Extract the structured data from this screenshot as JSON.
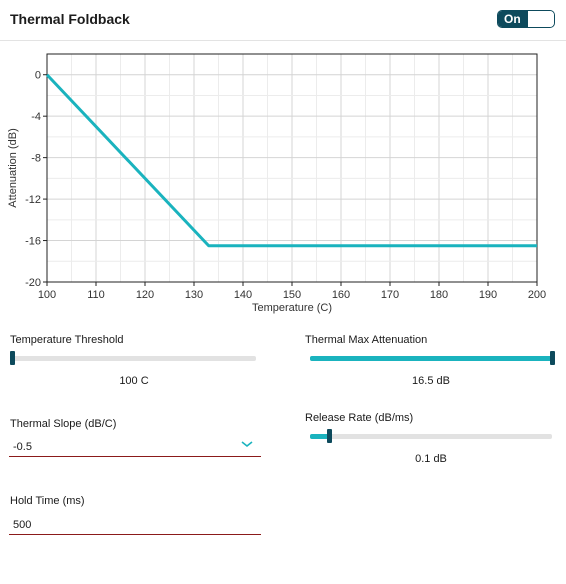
{
  "header": {
    "title": "Thermal Foldback",
    "toggle_label": "On"
  },
  "chart_data": {
    "type": "line",
    "xlabel": "Temperature (C)",
    "ylabel": "Attenuation (dB)",
    "xlim": [
      100,
      200
    ],
    "ylim": [
      -20,
      2
    ],
    "x_ticks": [
      100,
      110,
      120,
      130,
      140,
      150,
      160,
      170,
      180,
      190,
      200
    ],
    "y_ticks": [
      0,
      -4,
      -8,
      -12,
      -16,
      -20
    ],
    "grid": true,
    "series": [
      {
        "x": [
          100,
          133,
          200
        ],
        "y": [
          0,
          -16.5,
          -16.5
        ],
        "color": "#1ab3be"
      }
    ]
  },
  "controls": {
    "temp_threshold": {
      "label": "Temperature Threshold",
      "value_text": "100 C",
      "fraction": 0.0
    },
    "max_attenuation": {
      "label": "Thermal Max Attenuation",
      "value_text": "16.5 dB",
      "fraction": 1.0
    },
    "thermal_slope": {
      "label": "Thermal Slope (dB/C)",
      "value": "-0.5"
    },
    "release_rate": {
      "label": "Release Rate (dB/ms)",
      "value_text": "0.1 dB",
      "fraction": 0.08
    },
    "hold_time": {
      "label": "Hold Time (ms)",
      "value": "500"
    }
  },
  "colors": {
    "accent": "#1ab3be",
    "dark": "#0d4a5c",
    "underline": "#8b1a1a"
  },
  "icons": {
    "dropdown": "chevron-down-icon"
  }
}
